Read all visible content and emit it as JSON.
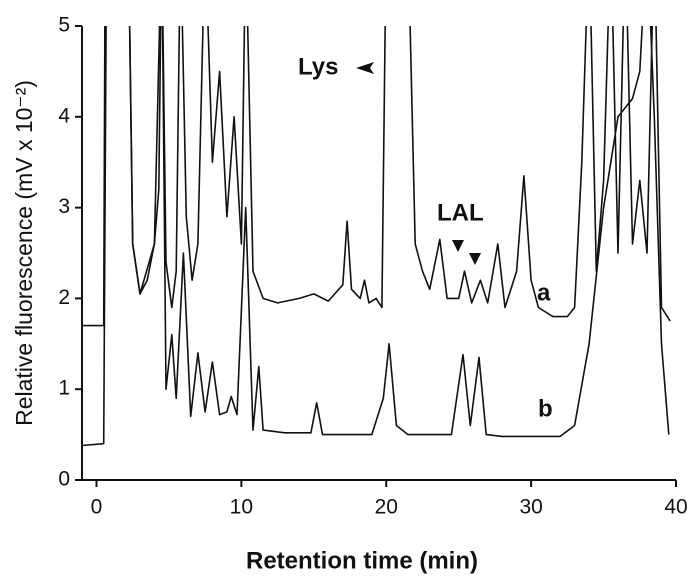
{
  "chart_data": {
    "type": "line",
    "xlabel": "Retention time (min)",
    "ylabel": "Relative fluorescence (mV x 10⁻²)",
    "xlim": [
      -1,
      40
    ],
    "xticks": [
      0,
      10,
      20,
      30,
      40
    ],
    "ylim": [
      0,
      5
    ],
    "yticks": [
      0,
      1,
      2,
      3,
      4,
      5
    ],
    "annotations": [
      "Lys",
      "LAL"
    ],
    "series": [
      {
        "name": "a",
        "color": "#111111",
        "x": [
          -1,
          0.5,
          0.6,
          2.2,
          2.5,
          3,
          3.5,
          4,
          4.3,
          4.5,
          4.8,
          5.2,
          5.5,
          5.8,
          6.2,
          6.6,
          7,
          7.5,
          8,
          8.5,
          9,
          9.5,
          10,
          10.3,
          10.8,
          11.5,
          12.5,
          14,
          15,
          16,
          17,
          17.3,
          17.6,
          18.2,
          18.5,
          18.8,
          19.3,
          19.7,
          20,
          21.5,
          22,
          22.5,
          23,
          23.7,
          24.2,
          25,
          25.4,
          25.9,
          26.5,
          27,
          27.7,
          28.2,
          29,
          29.5,
          30,
          30.5,
          31.5,
          32.5,
          33,
          33.5,
          34,
          34.5,
          35,
          35.5,
          36,
          36.5,
          37,
          37.5,
          38,
          38.5,
          39,
          39.6
        ],
        "values": [
          1.7,
          1.7,
          6,
          6,
          2.6,
          2.05,
          2.2,
          2.6,
          3.2,
          6,
          2.4,
          1.9,
          2.3,
          6,
          2.9,
          2.2,
          2.6,
          6,
          3.5,
          4.5,
          2.9,
          4,
          2.6,
          6,
          2.3,
          2.0,
          1.95,
          2.0,
          2.05,
          1.97,
          2.15,
          2.85,
          2.1,
          2.0,
          2.2,
          1.95,
          2.0,
          1.9,
          6,
          6,
          2.6,
          2.3,
          2.1,
          2.65,
          2.0,
          2.0,
          2.3,
          1.95,
          2.2,
          1.95,
          2.6,
          1.9,
          2.3,
          3.35,
          2.2,
          1.9,
          1.8,
          1.8,
          1.9,
          3.5,
          6,
          2.3,
          3.3,
          6,
          2.5,
          6,
          2.6,
          3.3,
          2.5,
          6,
          1.9,
          1.75
        ]
      },
      {
        "name": "b",
        "color": "#111111",
        "x": [
          -1,
          0.5,
          0.7,
          2.2,
          2.5,
          3,
          4,
          4.5,
          4.8,
          5.2,
          5.5,
          6,
          6.5,
          7,
          7.5,
          8,
          8.5,
          9,
          9.3,
          9.7,
          10.3,
          10.8,
          11.2,
          11.5,
          13,
          14.8,
          15.2,
          15.6,
          19,
          19.8,
          20.2,
          20.7,
          21.5,
          24.5,
          25.3,
          25.8,
          26.4,
          26.9,
          28,
          32,
          33,
          34,
          35,
          36,
          37,
          37.5,
          38,
          38.5,
          39,
          39.5
        ],
        "values": [
          0.38,
          0.4,
          6,
          6,
          2.6,
          2.05,
          2.6,
          6,
          1.0,
          1.6,
          0.9,
          2.5,
          0.7,
          1.4,
          0.75,
          1.3,
          0.72,
          0.75,
          0.92,
          0.72,
          3.0,
          0.55,
          1.25,
          0.55,
          0.52,
          0.52,
          0.85,
          0.5,
          0.5,
          0.9,
          1.5,
          0.6,
          0.5,
          0.5,
          1.38,
          0.6,
          1.35,
          0.5,
          0.48,
          0.48,
          0.6,
          1.5,
          3.0,
          4.0,
          4.2,
          4.5,
          6,
          4.0,
          1.5,
          0.5
        ]
      }
    ]
  }
}
